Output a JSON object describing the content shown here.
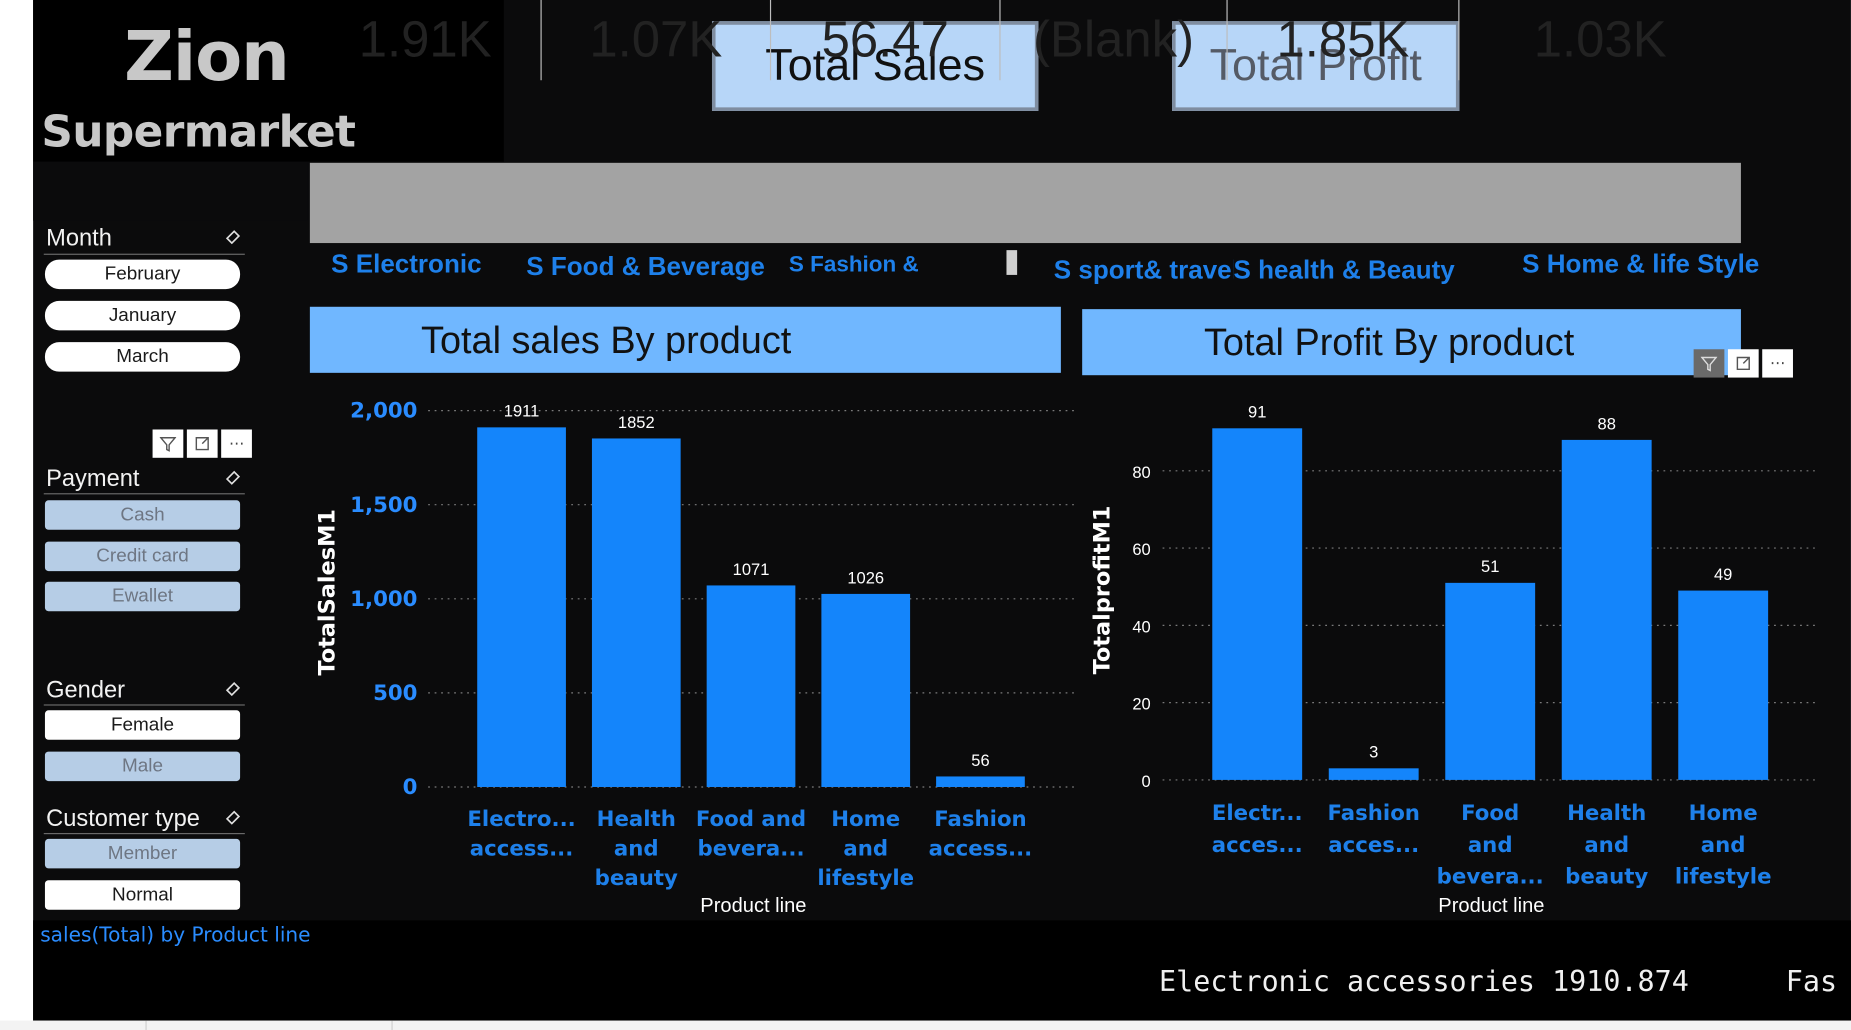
{
  "brand": {
    "line1": "Zion",
    "line2": "Supermarket"
  },
  "buttons": {
    "total_sales": "Total Sales",
    "total_profit": "Total Profit"
  },
  "kpis": [
    {
      "value": "1.91K",
      "label": "S Electronic"
    },
    {
      "value": "1.07K",
      "label": "S Food & Beverage"
    },
    {
      "value": "56.47",
      "label": "S Fashion &"
    },
    {
      "value": "(Blank)",
      "label": "S sport& travel"
    },
    {
      "value": "1.85K",
      "label": "S health & Beauty"
    },
    {
      "value": "1.03K",
      "label": "S Home & life Style"
    }
  ],
  "slicers": {
    "month": {
      "title": "Month",
      "items": [
        "February",
        "January",
        "March"
      ]
    },
    "payment": {
      "title": "Payment",
      "items": [
        "Cash",
        "Credit card",
        "Ewallet"
      ]
    },
    "gender": {
      "title": "Gender",
      "items": [
        "Female",
        "Male"
      ]
    },
    "customer_type": {
      "title": "Customer type",
      "items": [
        "Member",
        "Normal"
      ]
    }
  },
  "tool_icons": [
    "filter-icon",
    "focus-mode-icon",
    "more-options-icon"
  ],
  "panels": {
    "sales": {
      "header": "Total sales By product"
    },
    "profit": {
      "header": "Total Profit By product"
    }
  },
  "chart_data": [
    {
      "type": "bar",
      "title": "",
      "xlabel": "Product line",
      "ylabel": "TotalSalesM1",
      "ylim": [
        0,
        2000
      ],
      "yticks": [
        0,
        500,
        1000,
        1500,
        2000
      ],
      "ytick_labels": [
        "0",
        "500",
        "1,000",
        "1,500",
        "2,000"
      ],
      "categories": [
        [
          "Electro...",
          "access..."
        ],
        [
          "Health",
          "and",
          "beauty"
        ],
        [
          "Food and",
          "bevera..."
        ],
        [
          "Home",
          "and",
          "lifestyle"
        ],
        [
          "Fashion",
          "access..."
        ]
      ],
      "values": [
        1911,
        1852,
        1071,
        1026,
        56
      ],
      "data_labels": [
        "1911",
        "1852",
        "1071",
        "1026",
        "56"
      ],
      "grid": true,
      "bar_color": "#1485fb"
    },
    {
      "type": "bar",
      "title": "",
      "xlabel": "Product line",
      "ylabel": "TotalprofitM1",
      "ylim": [
        0,
        91
      ],
      "yticks": [
        0,
        20,
        40,
        60,
        80
      ],
      "ytick_labels": [
        "0",
        "20",
        "40",
        "60",
        "80"
      ],
      "categories": [
        [
          "Electr...",
          "acces..."
        ],
        [
          "Fashion",
          "acces..."
        ],
        [
          "Food",
          "and",
          "bevera..."
        ],
        [
          "Health",
          "and",
          "beauty"
        ],
        [
          "Home",
          "and",
          "lifestyle"
        ]
      ],
      "values": [
        91,
        3,
        51,
        88,
        49
      ],
      "data_labels": [
        "91",
        "3",
        "51",
        "88",
        "49"
      ],
      "grid": true,
      "bar_color": "#1485fb"
    }
  ],
  "footer": {
    "title": "sales(Total) by Product line",
    "ticker_item": "Electronic accessories 1910.874",
    "ticker_next": "Fas"
  },
  "colors": {
    "background": "#0b0b0c",
    "accent_blue": "#1485fb",
    "header_blue": "#70b7ff",
    "button_blue": "#b7d6f8",
    "label_blue": "#1e80ea",
    "kpi_gray": "#a3a3a3"
  }
}
